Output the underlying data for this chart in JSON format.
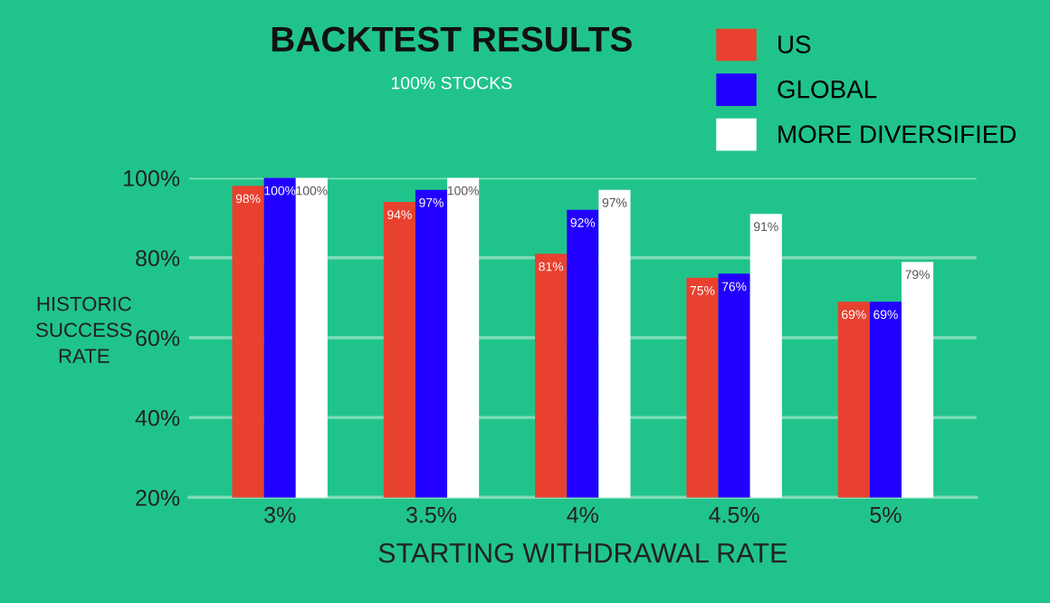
{
  "chart_data": {
    "type": "bar",
    "title": "BACKTEST RESULTS",
    "subtitle": "100% STOCKS",
    "xlabel": "STARTING WITHDRAWAL RATE",
    "ylabel": "HISTORIC\nSUCCESS\nRATE",
    "categories": [
      "3%",
      "3.5%",
      "4%",
      "4.5%",
      "5%"
    ],
    "series": [
      {
        "name": "US",
        "color": "#e8412f",
        "values": [
          98,
          94,
          81,
          75,
          69
        ],
        "value_labels": [
          "98%",
          "94%",
          "81%",
          "75%",
          "69%"
        ]
      },
      {
        "name": "GLOBAL",
        "color": "#2200ff",
        "values": [
          100,
          97,
          92,
          76,
          69
        ],
        "value_labels": [
          "100%",
          "97%",
          "92%",
          "76%",
          "69%"
        ]
      },
      {
        "name": "MORE DIVERSIFIED",
        "color": "#ffffff",
        "values": [
          100,
          100,
          97,
          91,
          79
        ],
        "value_labels": [
          "100%",
          "100%",
          "97%",
          "91%",
          "79%"
        ]
      }
    ],
    "ylim": [
      20,
      100
    ],
    "yticks": [
      {
        "value": 20,
        "label": "20%"
      },
      {
        "value": 40,
        "label": "40%"
      },
      {
        "value": 60,
        "label": "60%"
      },
      {
        "value": 80,
        "label": "80%"
      },
      {
        "value": 100,
        "label": "100%"
      }
    ],
    "grid": "y",
    "legend": "top right"
  }
}
